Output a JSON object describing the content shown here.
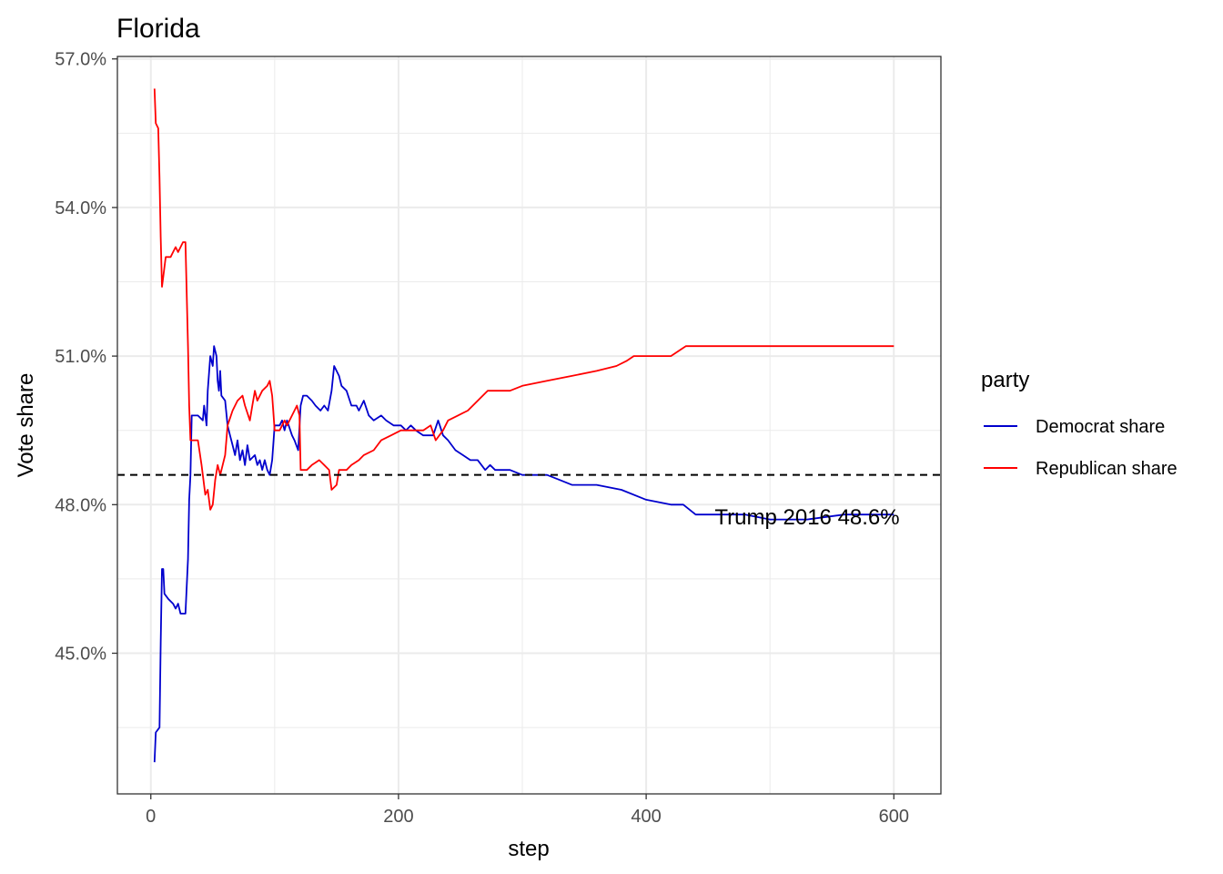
{
  "chart_data": {
    "type": "line",
    "title": "Florida",
    "xlabel": "step",
    "ylabel": "Vote share",
    "xlim": [
      -27,
      638
    ],
    "ylim": [
      0.4216,
      0.5705
    ],
    "x_ticks": [
      0,
      200,
      400,
      600
    ],
    "x_tick_labels": [
      "0",
      "200",
      "400",
      "600"
    ],
    "y_ticks": [
      0.45,
      0.48,
      0.51,
      0.54,
      0.57
    ],
    "y_tick_labels": [
      "45.0%",
      "48.0%",
      "51.0%",
      "54.0%",
      "57.0%"
    ],
    "grid": true,
    "legend": {
      "title": "party",
      "position": "right"
    },
    "hline": {
      "y": 0.486,
      "style": "dashed",
      "color": "#000000"
    },
    "annotation": {
      "text": "Trump 2016 48.6%",
      "x": 530,
      "y": 0.4775
    },
    "series": [
      {
        "name": "Democrat share",
        "color": "#0000CD",
        "points": [
          [
            3,
            0.428
          ],
          [
            4,
            0.434
          ],
          [
            7,
            0.435
          ],
          [
            8,
            0.452
          ],
          [
            9,
            0.467
          ],
          [
            10,
            0.467
          ],
          [
            11,
            0.462
          ],
          [
            14,
            0.461
          ],
          [
            18,
            0.46
          ],
          [
            20,
            0.459
          ],
          [
            22,
            0.46
          ],
          [
            24,
            0.458
          ],
          [
            28,
            0.458
          ],
          [
            30,
            0.469
          ],
          [
            31,
            0.481
          ],
          [
            32,
            0.486
          ],
          [
            33,
            0.498
          ],
          [
            38,
            0.498
          ],
          [
            42,
            0.497
          ],
          [
            43,
            0.5
          ],
          [
            45,
            0.496
          ],
          [
            46,
            0.503
          ],
          [
            48,
            0.51
          ],
          [
            50,
            0.508
          ],
          [
            51,
            0.512
          ],
          [
            53,
            0.51
          ],
          [
            54,
            0.505
          ],
          [
            55,
            0.503
          ],
          [
            56,
            0.507
          ],
          [
            57,
            0.502
          ],
          [
            60,
            0.501
          ],
          [
            62,
            0.496
          ],
          [
            64,
            0.494
          ],
          [
            66,
            0.492
          ],
          [
            68,
            0.49
          ],
          [
            70,
            0.493
          ],
          [
            72,
            0.489
          ],
          [
            74,
            0.491
          ],
          [
            76,
            0.488
          ],
          [
            78,
            0.492
          ],
          [
            80,
            0.489
          ],
          [
            84,
            0.49
          ],
          [
            86,
            0.488
          ],
          [
            88,
            0.489
          ],
          [
            90,
            0.487
          ],
          [
            92,
            0.489
          ],
          [
            94,
            0.487
          ],
          [
            96,
            0.486
          ],
          [
            98,
            0.489
          ],
          [
            100,
            0.496
          ],
          [
            104,
            0.496
          ],
          [
            106,
            0.497
          ],
          [
            108,
            0.495
          ],
          [
            110,
            0.497
          ],
          [
            114,
            0.494
          ],
          [
            116,
            0.493
          ],
          [
            119,
            0.491
          ],
          [
            121,
            0.5
          ],
          [
            123,
            0.502
          ],
          [
            126,
            0.502
          ],
          [
            130,
            0.501
          ],
          [
            133,
            0.5
          ],
          [
            137,
            0.499
          ],
          [
            140,
            0.5
          ],
          [
            143,
            0.499
          ],
          [
            146,
            0.503
          ],
          [
            148,
            0.508
          ],
          [
            152,
            0.506
          ],
          [
            154,
            0.504
          ],
          [
            158,
            0.503
          ],
          [
            162,
            0.5
          ],
          [
            166,
            0.5
          ],
          [
            168,
            0.499
          ],
          [
            172,
            0.501
          ],
          [
            176,
            0.498
          ],
          [
            180,
            0.497
          ],
          [
            186,
            0.498
          ],
          [
            190,
            0.497
          ],
          [
            196,
            0.496
          ],
          [
            202,
            0.496
          ],
          [
            206,
            0.495
          ],
          [
            210,
            0.496
          ],
          [
            214,
            0.495
          ],
          [
            220,
            0.494
          ],
          [
            228,
            0.494
          ],
          [
            232,
            0.497
          ],
          [
            236,
            0.494
          ],
          [
            240,
            0.493
          ],
          [
            246,
            0.491
          ],
          [
            252,
            0.49
          ],
          [
            258,
            0.489
          ],
          [
            264,
            0.489
          ],
          [
            270,
            0.487
          ],
          [
            274,
            0.488
          ],
          [
            278,
            0.487
          ],
          [
            290,
            0.487
          ],
          [
            300,
            0.486
          ],
          [
            320,
            0.486
          ],
          [
            330,
            0.485
          ],
          [
            340,
            0.484
          ],
          [
            360,
            0.484
          ],
          [
            380,
            0.483
          ],
          [
            400,
            0.481
          ],
          [
            420,
            0.48
          ],
          [
            430,
            0.48
          ],
          [
            440,
            0.478
          ],
          [
            480,
            0.478
          ],
          [
            500,
            0.477
          ],
          [
            530,
            0.477
          ],
          [
            560,
            0.478
          ],
          [
            600,
            0.478
          ]
        ]
      },
      {
        "name": "Republican share",
        "color": "#FF0000",
        "points": [
          [
            3,
            0.564
          ],
          [
            4,
            0.557
          ],
          [
            6,
            0.556
          ],
          [
            7,
            0.546
          ],
          [
            8,
            0.534
          ],
          [
            9,
            0.524
          ],
          [
            10,
            0.526
          ],
          [
            12,
            0.53
          ],
          [
            16,
            0.53
          ],
          [
            18,
            0.531
          ],
          [
            20,
            0.532
          ],
          [
            22,
            0.531
          ],
          [
            26,
            0.533
          ],
          [
            28,
            0.533
          ],
          [
            30,
            0.512
          ],
          [
            31,
            0.5
          ],
          [
            32,
            0.493
          ],
          [
            38,
            0.493
          ],
          [
            41,
            0.488
          ],
          [
            44,
            0.482
          ],
          [
            46,
            0.483
          ],
          [
            48,
            0.479
          ],
          [
            50,
            0.48
          ],
          [
            52,
            0.485
          ],
          [
            54,
            0.488
          ],
          [
            56,
            0.486
          ],
          [
            58,
            0.488
          ],
          [
            60,
            0.49
          ],
          [
            62,
            0.496
          ],
          [
            66,
            0.499
          ],
          [
            70,
            0.501
          ],
          [
            74,
            0.502
          ],
          [
            76,
            0.5
          ],
          [
            80,
            0.497
          ],
          [
            82,
            0.5
          ],
          [
            84,
            0.503
          ],
          [
            86,
            0.501
          ],
          [
            90,
            0.503
          ],
          [
            94,
            0.504
          ],
          [
            96,
            0.505
          ],
          [
            98,
            0.502
          ],
          [
            100,
            0.495
          ],
          [
            104,
            0.495
          ],
          [
            108,
            0.497
          ],
          [
            110,
            0.496
          ],
          [
            114,
            0.498
          ],
          [
            118,
            0.5
          ],
          [
            120,
            0.498
          ],
          [
            121,
            0.487
          ],
          [
            126,
            0.487
          ],
          [
            130,
            0.488
          ],
          [
            136,
            0.489
          ],
          [
            140,
            0.488
          ],
          [
            144,
            0.487
          ],
          [
            146,
            0.483
          ],
          [
            150,
            0.484
          ],
          [
            152,
            0.487
          ],
          [
            158,
            0.487
          ],
          [
            162,
            0.488
          ],
          [
            168,
            0.489
          ],
          [
            172,
            0.49
          ],
          [
            180,
            0.491
          ],
          [
            186,
            0.493
          ],
          [
            194,
            0.494
          ],
          [
            202,
            0.495
          ],
          [
            210,
            0.495
          ],
          [
            220,
            0.495
          ],
          [
            226,
            0.496
          ],
          [
            230,
            0.493
          ],
          [
            236,
            0.495
          ],
          [
            240,
            0.497
          ],
          [
            248,
            0.498
          ],
          [
            256,
            0.499
          ],
          [
            264,
            0.501
          ],
          [
            272,
            0.503
          ],
          [
            290,
            0.503
          ],
          [
            300,
            0.504
          ],
          [
            320,
            0.505
          ],
          [
            340,
            0.506
          ],
          [
            360,
            0.507
          ],
          [
            376,
            0.508
          ],
          [
            384,
            0.509
          ],
          [
            390,
            0.51
          ],
          [
            420,
            0.51
          ],
          [
            432,
            0.512
          ],
          [
            600,
            0.512
          ]
        ]
      }
    ]
  }
}
